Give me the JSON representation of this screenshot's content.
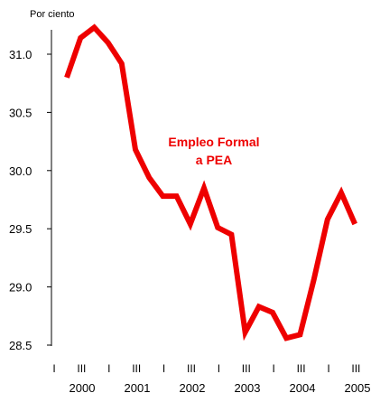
{
  "chart_data": {
    "type": "line",
    "unit_label": "Por ciento",
    "ylim": [
      28.5,
      31.3
    ],
    "yticks": [
      "31.0",
      "30.5",
      "30.0",
      "29.5",
      "29.0",
      "28.5"
    ],
    "ytick_values": [
      31.0,
      30.5,
      30.0,
      29.5,
      29.0,
      28.5
    ],
    "quarter_ticks": [
      "I",
      "III",
      "I",
      "III",
      "I",
      "III",
      "I",
      "III",
      "I",
      "III",
      "I",
      "III"
    ],
    "years": [
      "2000",
      "2001",
      "2002",
      "2003",
      "2004",
      "2005"
    ],
    "x": [
      "2000-I",
      "2000-II",
      "2000-III",
      "2000-IV",
      "2001-I",
      "2001-II",
      "2001-III",
      "2001-IV",
      "2002-I",
      "2002-II",
      "2002-III",
      "2002-IV",
      "2003-I",
      "2003-II",
      "2003-III",
      "2003-IV",
      "2004-I",
      "2004-II",
      "2004-III",
      "2004-IV",
      "2005-I",
      "2005-II"
    ],
    "series": [
      {
        "values": [
          30.8,
          31.14,
          31.23,
          31.1,
          30.92,
          30.18,
          29.94,
          29.78,
          29.78,
          29.54,
          29.85,
          29.51,
          29.45,
          28.61,
          28.83,
          28.78,
          28.56,
          28.59,
          29.06,
          29.58,
          29.81,
          29.54
        ],
        "color": "#ee0000"
      }
    ],
    "annotation_lines": [
      "Empleo Formal",
      "a PEA"
    ],
    "annotation_color": "#ee0000",
    "grid": false
  }
}
